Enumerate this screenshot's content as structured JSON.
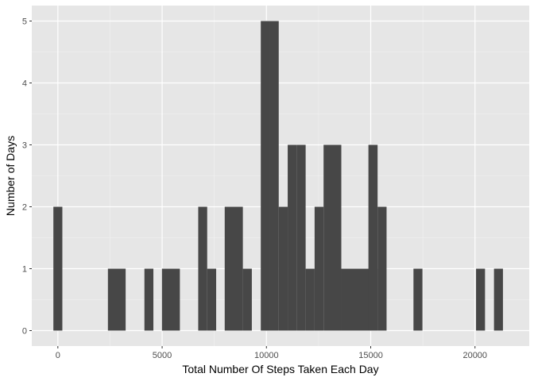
{
  "chart_data": {
    "type": "bar",
    "style": "histogram",
    "title": "",
    "xlabel": "Total Number Of Steps Taken Each Day",
    "ylabel": "Number of Days",
    "xlim": [
      -1250,
      22600
    ],
    "ylim": [
      -0.25,
      5.25
    ],
    "bin_width": 430,
    "xticks": [
      0,
      5000,
      10000,
      15000,
      20000
    ],
    "xtick_labels": [
      "0",
      "5000",
      "10000",
      "15000",
      "20000"
    ],
    "yticks": [
      0,
      1,
      2,
      3,
      4,
      5
    ],
    "ytick_labels": [
      "0",
      "1",
      "2",
      "3",
      "4",
      "5"
    ],
    "bins": [
      {
        "x_start": -215,
        "x_end": 215,
        "count": 2
      },
      {
        "x_start": 2400,
        "x_end": 3250,
        "count": 1
      },
      {
        "x_start": 4150,
        "x_end": 4580,
        "count": 1
      },
      {
        "x_start": 4990,
        "x_end": 5850,
        "count": 1
      },
      {
        "x_start": 6730,
        "x_end": 7160,
        "count": 2
      },
      {
        "x_start": 7160,
        "x_end": 7590,
        "count": 1
      },
      {
        "x_start": 8000,
        "x_end": 8870,
        "count": 2
      },
      {
        "x_start": 8870,
        "x_end": 9300,
        "count": 1
      },
      {
        "x_start": 9730,
        "x_end": 10160,
        "count": 5
      },
      {
        "x_start": 10160,
        "x_end": 10590,
        "count": 5
      },
      {
        "x_start": 10590,
        "x_end": 11020,
        "count": 2
      },
      {
        "x_start": 11020,
        "x_end": 11450,
        "count": 3
      },
      {
        "x_start": 11450,
        "x_end": 11880,
        "count": 3
      },
      {
        "x_start": 11880,
        "x_end": 12310,
        "count": 1
      },
      {
        "x_start": 12310,
        "x_end": 12740,
        "count": 2
      },
      {
        "x_start": 12740,
        "x_end": 13590,
        "count": 3
      },
      {
        "x_start": 13590,
        "x_end": 15330,
        "count": 1
      },
      {
        "x_start": 14890,
        "x_end": 15330,
        "count": 3
      },
      {
        "x_start": 15330,
        "x_end": 15760,
        "count": 2
      },
      {
        "x_start": 17050,
        "x_end": 17480,
        "count": 1
      },
      {
        "x_start": 20050,
        "x_end": 20480,
        "count": 1
      },
      {
        "x_start": 20910,
        "x_end": 21340,
        "count": 1
      }
    ],
    "colors": {
      "panel_background": "#e6e6e6",
      "grid_major": "#ffffff",
      "grid_minor": "#f2f2f2",
      "bar_fill": "#474747"
    },
    "grid": true,
    "legend": "none"
  }
}
